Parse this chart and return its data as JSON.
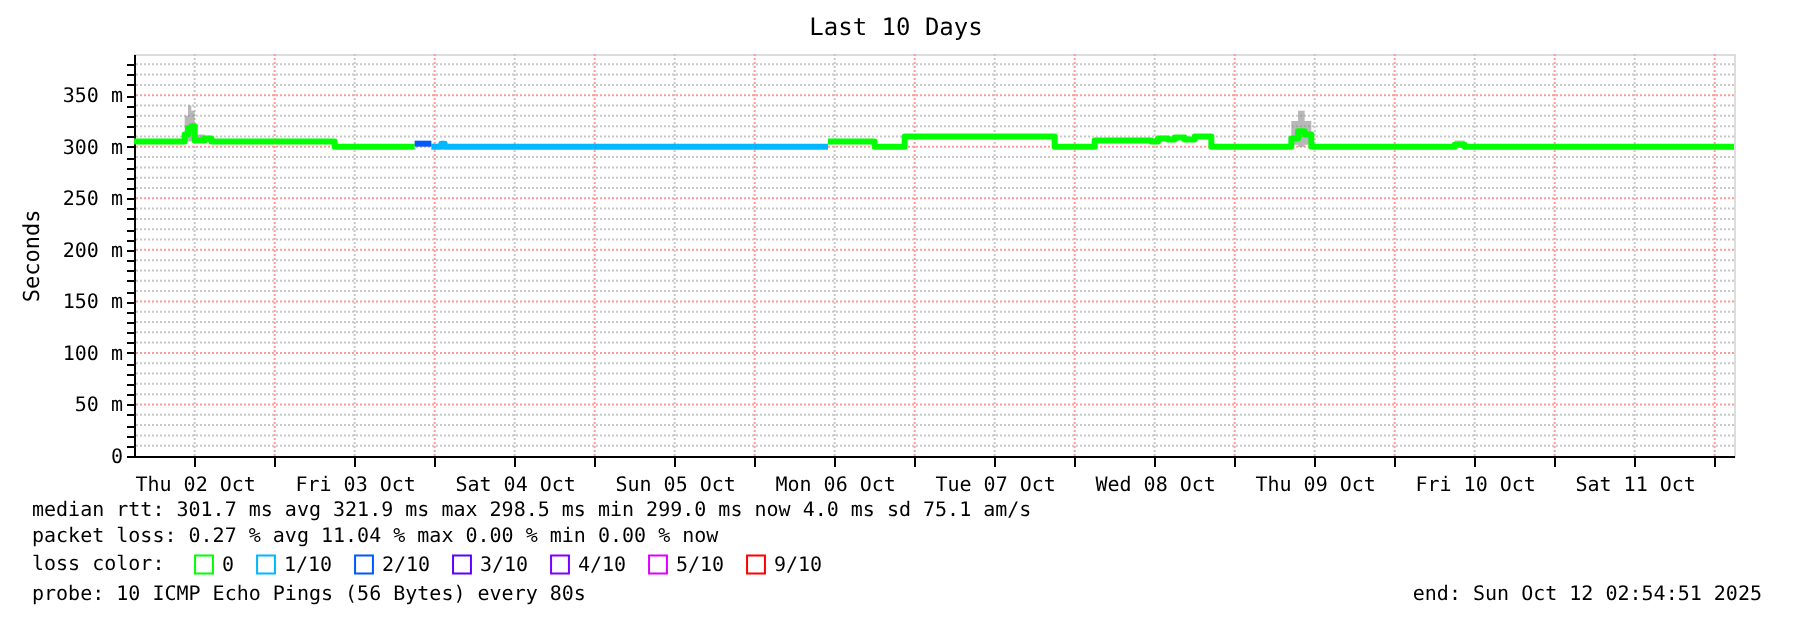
{
  "chart_data": {
    "type": "step",
    "title": "Last 10 Days",
    "ylabel": "Seconds",
    "legend_title": "loss color:",
    "legend": "bottom",
    "grid": true,
    "xlim": [
      "2025-10-02T02:54",
      "2025-10-12T02:54"
    ],
    "xticks": [
      {
        "value": "2025-10-02T12:00",
        "label": "Thu 02 Oct"
      },
      {
        "value": "2025-10-03T00:00",
        "label": null
      },
      {
        "value": "2025-10-03T12:00",
        "label": "Fri 03 Oct"
      },
      {
        "value": "2025-10-04T00:00",
        "label": null
      },
      {
        "value": "2025-10-04T12:00",
        "label": "Sat 04 Oct"
      },
      {
        "value": "2025-10-05T00:00",
        "label": null
      },
      {
        "value": "2025-10-05T12:00",
        "label": "Sun 05 Oct"
      },
      {
        "value": "2025-10-06T00:00",
        "label": null
      },
      {
        "value": "2025-10-06T12:00",
        "label": "Mon 06 Oct"
      },
      {
        "value": "2025-10-07T00:00",
        "label": null
      },
      {
        "value": "2025-10-07T12:00",
        "label": "Tue 07 Oct"
      },
      {
        "value": "2025-10-08T00:00",
        "label": null
      },
      {
        "value": "2025-10-08T12:00",
        "label": "Wed 08 Oct"
      },
      {
        "value": "2025-10-09T00:00",
        "label": null
      },
      {
        "value": "2025-10-09T12:00",
        "label": "Thu 09 Oct"
      },
      {
        "value": "2025-10-10T00:00",
        "label": null
      },
      {
        "value": "2025-10-10T12:00",
        "label": "Fri 10 Oct"
      },
      {
        "value": "2025-10-11T00:00",
        "label": null
      },
      {
        "value": "2025-10-11T12:00",
        "label": "Sat 11 Oct"
      },
      {
        "value": "2025-10-12T00:00",
        "label": null
      }
    ],
    "ylim": [
      0,
      390
    ],
    "yticks": [
      0,
      {
        "value": 10,
        "label": null
      },
      {
        "value": 20,
        "label": null
      },
      {
        "value": 30,
        "label": null
      },
      {
        "value": 40,
        "label": null
      },
      {
        "value": 50,
        "label": "50 m"
      },
      {
        "value": 60,
        "label": null
      },
      {
        "value": 70,
        "label": null
      },
      {
        "value": 80,
        "label": null
      },
      {
        "value": 90,
        "label": null
      },
      {
        "value": 100,
        "label": "100 m"
      },
      {
        "value": 110,
        "label": null
      },
      {
        "value": 120,
        "label": null
      },
      {
        "value": 130,
        "label": null
      },
      {
        "value": 140,
        "label": null
      },
      {
        "value": 150,
        "label": "150 m"
      },
      {
        "value": 160,
        "label": null
      },
      {
        "value": 170,
        "label": null
      },
      {
        "value": 180,
        "label": null
      },
      {
        "value": 190,
        "label": null
      },
      {
        "value": 200,
        "label": "200 m"
      },
      {
        "value": 210,
        "label": null
      },
      {
        "value": 220,
        "label": null
      },
      {
        "value": 230,
        "label": null
      },
      {
        "value": 240,
        "label": null
      },
      {
        "value": 250,
        "label": "250 m"
      },
      {
        "value": 260,
        "label": null
      },
      {
        "value": 270,
        "label": null
      },
      {
        "value": 280,
        "label": null
      },
      {
        "value": 290,
        "label": null
      },
      {
        "value": 300,
        "label": "300 m"
      },
      {
        "value": 310,
        "label": null
      },
      {
        "value": 320,
        "label": null
      },
      {
        "value": 330,
        "label": null
      },
      {
        "value": 340,
        "label": null
      },
      {
        "value": 350,
        "label": "350 m"
      },
      {
        "value": 360,
        "label": null
      },
      {
        "value": 370,
        "label": null
      },
      {
        "value": 380,
        "label": null
      }
    ],
    "series": [
      {
        "name": "0",
        "color": "#00ff00",
        "x": [
          "2025-10-02T02:54",
          "2025-10-02T10:30",
          "2025-10-02T11:00",
          "2025-10-02T11:30",
          "2025-10-02T12:00",
          "2025-10-02T13:30",
          "2025-10-02T14:30",
          "2025-10-03T09:00",
          "2025-10-03T21:00",
          "2025-10-05T00:00",
          "2025-10-06T11:00",
          "2025-10-06T18:00",
          "2025-10-06T22:30",
          "2025-10-07T21:00",
          "2025-10-08T03:00",
          "2025-10-08T11:30",
          "2025-10-08T12:30",
          "2025-10-08T14:00",
          "2025-10-08T15:00",
          "2025-10-08T16:30",
          "2025-10-08T18:00",
          "2025-10-08T20:30",
          "2025-10-09T08:30",
          "2025-10-09T09:30",
          "2025-10-09T10:30",
          "2025-10-09T11:30",
          "2025-10-10T09:00",
          "2025-10-10T10:30",
          "2025-10-12T02:54"
        ],
        "values": [
          305,
          312,
          318,
          320,
          306,
          308,
          305,
          300,
          300,
          null,
          305,
          300,
          310,
          300,
          306,
          305,
          308,
          307,
          309,
          307,
          310,
          300,
          308,
          315,
          312,
          300,
          302,
          300,
          300
        ],
        "lower": [
          305,
          305,
          305,
          306,
          305,
          306,
          305,
          300,
          300,
          null,
          305,
          300,
          310,
          300,
          306,
          305,
          308,
          307,
          309,
          307,
          310,
          300,
          302,
          300,
          302,
          300,
          300,
          300,
          300
        ],
        "upper": [
          305,
          330,
          340,
          335,
          312,
          310,
          305,
          300,
          300,
          null,
          305,
          300,
          310,
          300,
          306,
          305,
          308,
          307,
          309,
          307,
          310,
          300,
          325,
          335,
          325,
          300,
          306,
          300,
          300
        ]
      },
      {
        "name": "1/10",
        "color": "#00b8ff",
        "x": [
          "2025-10-03T23:30",
          "2025-10-04T01:00",
          "2025-10-04T01:30",
          "2025-10-06T11:00"
        ],
        "values": [
          300,
          303,
          300,
          300
        ]
      },
      {
        "name": "2/10",
        "color": "#0059ff",
        "x": [
          "2025-10-03T21:00",
          "2025-10-03T23:30"
        ],
        "values": [
          303,
          303
        ]
      },
      {
        "name": "3/10",
        "color": "#5e00ff"
      },
      {
        "name": "4/10",
        "color": "#7e00ff"
      },
      {
        "name": "5/10",
        "color": "#dd00ff"
      },
      {
        "name": "9/10",
        "color": "#ff0000"
      }
    ],
    "annotations": [
      "median rtt: 301.7 ms avg 321.9 ms max 298.5 ms min 299.0 ms now 4.0 ms sd 75.1 am/s",
      "packet loss: 0.27 % avg 11.04 % max 0.00 % min 0.00 % now",
      "probe: 10 ICMP Echo Pings (56 Bytes) every 80s",
      "end: Sun Oct 12 02:54:51 2025"
    ]
  }
}
